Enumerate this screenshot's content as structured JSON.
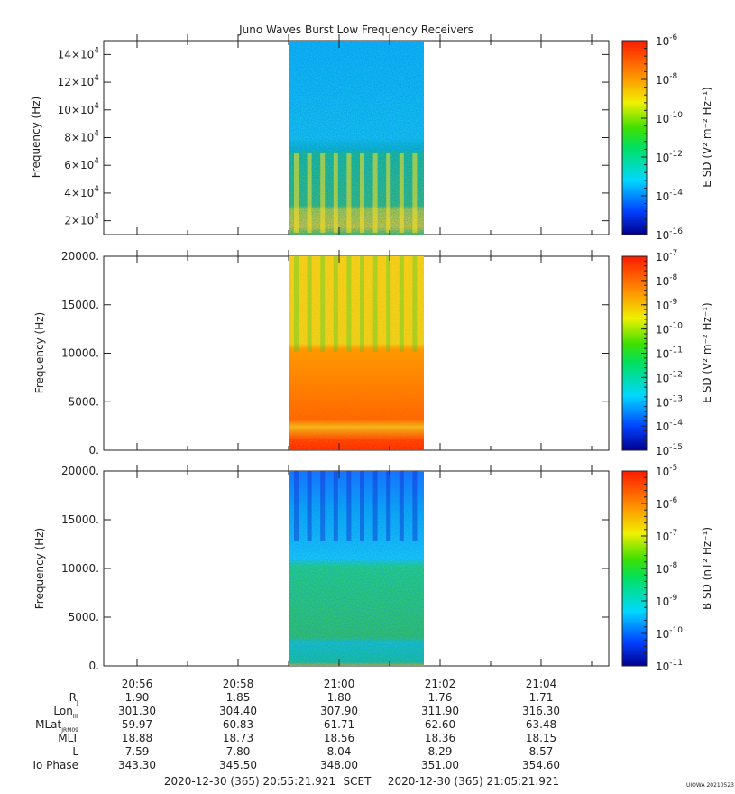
{
  "title": "Juno Waves Burst Low Frequency Receivers",
  "panels": [
    {
      "ylabel": "Frequency (Hz)",
      "yticks": [
        {
          "v": 20000,
          "base": "2×10",
          "exp": "4"
        },
        {
          "v": 40000,
          "base": "4×10",
          "exp": "4"
        },
        {
          "v": 60000,
          "base": "6×10",
          "exp": "4"
        },
        {
          "v": 80000,
          "base": "8×10",
          "exp": "4"
        },
        {
          "v": 100000,
          "base": "10×10",
          "exp": "4"
        },
        {
          "v": 120000,
          "base": "12×10",
          "exp": "4"
        },
        {
          "v": 140000,
          "base": "14×10",
          "exp": "4"
        }
      ],
      "cbar_label": "E SD (V² m⁻² Hz⁻¹)",
      "cbar_ticks": [
        {
          "base": "10",
          "exp": "-6"
        },
        {
          "base": "10",
          "exp": "-8"
        },
        {
          "base": "10",
          "exp": "-10"
        },
        {
          "base": "10",
          "exp": "-12"
        },
        {
          "base": "10",
          "exp": "-14"
        },
        {
          "base": "10",
          "exp": "-16"
        }
      ]
    },
    {
      "ylabel": "Frequency (Hz)",
      "yticks": [
        {
          "v": 0,
          "label": "0."
        },
        {
          "v": 5000,
          "label": "5000."
        },
        {
          "v": 10000,
          "label": "10000."
        },
        {
          "v": 15000,
          "label": "15000."
        },
        {
          "v": 20000,
          "label": "20000."
        }
      ],
      "cbar_label": "E SD (V² m⁻² Hz⁻¹)",
      "cbar_ticks": [
        {
          "base": "10",
          "exp": "-7"
        },
        {
          "base": "10",
          "exp": "-8"
        },
        {
          "base": "10",
          "exp": "-9"
        },
        {
          "base": "10",
          "exp": "-10"
        },
        {
          "base": "10",
          "exp": "-11"
        },
        {
          "base": "10",
          "exp": "-12"
        },
        {
          "base": "10",
          "exp": "-13"
        },
        {
          "base": "10",
          "exp": "-14"
        },
        {
          "base": "10",
          "exp": "-15"
        }
      ]
    },
    {
      "ylabel": "Frequency (Hz)",
      "yticks": [
        {
          "v": 0,
          "label": "0."
        },
        {
          "v": 5000,
          "label": "5000."
        },
        {
          "v": 10000,
          "label": "10000."
        },
        {
          "v": 15000,
          "label": "15000."
        },
        {
          "v": 20000,
          "label": "20000."
        }
      ],
      "cbar_label": "B SD (nT² Hz⁻¹)",
      "cbar_ticks": [
        {
          "base": "10",
          "exp": "-5"
        },
        {
          "base": "10",
          "exp": "-6"
        },
        {
          "base": "10",
          "exp": "-7"
        },
        {
          "base": "10",
          "exp": "-8"
        },
        {
          "base": "10",
          "exp": "-9"
        },
        {
          "base": "10",
          "exp": "-10"
        },
        {
          "base": "10",
          "exp": "-11"
        }
      ]
    }
  ],
  "xticks": [
    "20:56",
    "20:58",
    "21:00",
    "21:02",
    "21:04"
  ],
  "ephemeris": [
    {
      "label": "R",
      "sub": "J",
      "values": [
        "1.90",
        "1.85",
        "1.80",
        "1.76",
        "1.71"
      ]
    },
    {
      "label": "Lon",
      "sub": "III",
      "values": [
        "301.30",
        "304.40",
        "307.90",
        "311.90",
        "316.30"
      ]
    },
    {
      "label": "MLat",
      "sub": "JRM09",
      "values": [
        "59.97",
        "60.83",
        "61.71",
        "62.60",
        "63.48"
      ]
    },
    {
      "label": "MLT",
      "sub": "",
      "values": [
        "18.88",
        "18.73",
        "18.56",
        "18.36",
        "18.15"
      ]
    },
    {
      "label": "L",
      "sub": "",
      "values": [
        "7.59",
        "7.80",
        "8.04",
        "8.29",
        "8.57"
      ]
    },
    {
      "label": "Io Phase",
      "sub": "",
      "values": [
        "343.30",
        "345.50",
        "348.00",
        "351.00",
        "354.60"
      ]
    }
  ],
  "footer": {
    "start": "2020-12-30 (365) 20:55:21.921",
    "scet": "SCET",
    "end": "2020-12-30 (365) 21:05:21.921",
    "credit": "UIOWA 20210523"
  },
  "chart_data": {
    "type": "heatmap",
    "title": "Juno Waves Burst Low Frequency Receivers",
    "x_axis": {
      "start": "2020-12-30 20:55:21.921",
      "end": "2020-12-30 21:05:21.921",
      "ticks": [
        "20:56",
        "20:58",
        "21:00",
        "21:02",
        "21:04"
      ]
    },
    "data_interval": {
      "start": "20:59:20",
      "end": "21:01:50"
    },
    "panels": [
      {
        "ylabel": "Frequency (Hz)",
        "ylim": [
          10000,
          150000
        ],
        "zlabel": "E SD (V² m⁻² Hz⁻¹)",
        "zlim": [
          1e-16,
          1e-06
        ],
        "zscale": "log"
      },
      {
        "ylabel": "Frequency (Hz)",
        "ylim": [
          0,
          20000
        ],
        "zlabel": "E SD (V² m⁻² Hz⁻¹)",
        "zlim": [
          1e-15,
          1e-07
        ],
        "zscale": "log"
      },
      {
        "ylabel": "Frequency (Hz)",
        "ylim": [
          0,
          20000
        ],
        "zlabel": "B SD (nT² Hz⁻¹)",
        "zlim": [
          1e-11,
          1e-05
        ],
        "zscale": "log"
      }
    ]
  }
}
